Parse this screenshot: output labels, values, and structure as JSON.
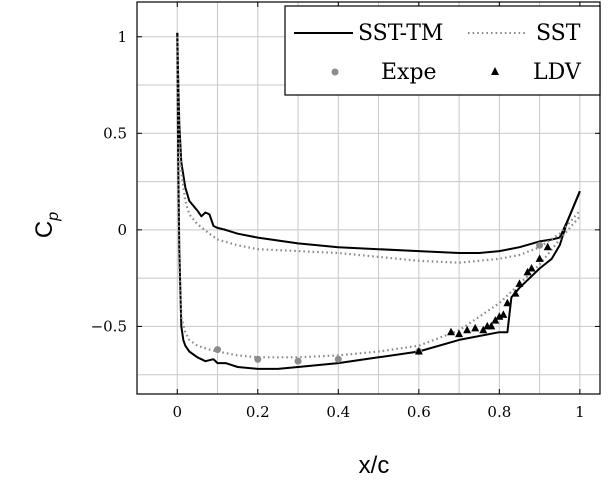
{
  "chart_data": {
    "type": "line",
    "title": "",
    "xlabel": "x/c",
    "ylabel": "C",
    "ylabel_sub": "p",
    "xlim": [
      -0.1,
      1.05
    ],
    "ylim": [
      -0.85,
      1.18
    ],
    "xticks": [
      0,
      0.2,
      0.4,
      0.6,
      0.8,
      1
    ],
    "xtick_labels": [
      "0",
      "0.2",
      "0.4",
      "0.6",
      "0.8",
      "1"
    ],
    "yticks": [
      -0.5,
      0,
      0.5,
      1
    ],
    "ytick_labels": [
      "−0.5",
      "0",
      "0.5",
      "1"
    ],
    "xgrid": [
      -0.1,
      0,
      0.1,
      0.2,
      0.3,
      0.4,
      0.5,
      0.6,
      0.7,
      0.8,
      0.9,
      1,
      1.05
    ],
    "ygrid": [
      -0.75,
      -0.5,
      -0.25,
      0,
      0.25,
      0.5,
      0.75,
      1
    ],
    "grid": true,
    "legend_position": "top-right",
    "series": [
      {
        "name": "SST-TM",
        "style": "solid",
        "color": "#000000",
        "lower": {
          "x": [
            0,
            0.002,
            0.005,
            0.01,
            0.015,
            0.02,
            0.03,
            0.05,
            0.07,
            0.09,
            0.1,
            0.12,
            0.15,
            0.2,
            0.25,
            0.3,
            0.4,
            0.5,
            0.6,
            0.7,
            0.8,
            0.82,
            0.83,
            0.85,
            0.9,
            0.93,
            0.95,
            0.97,
            1.0
          ],
          "y": [
            1.02,
            0.4,
            -0.1,
            -0.5,
            -0.57,
            -0.6,
            -0.63,
            -0.66,
            -0.68,
            -0.67,
            -0.69,
            -0.69,
            -0.71,
            -0.72,
            -0.72,
            -0.71,
            -0.69,
            -0.66,
            -0.63,
            -0.57,
            -0.53,
            -0.53,
            -0.35,
            -0.3,
            -0.2,
            -0.15,
            -0.08,
            0.05,
            0.2
          ]
        },
        "upper": {
          "x": [
            0,
            0.002,
            0.005,
            0.01,
            0.02,
            0.03,
            0.05,
            0.06,
            0.07,
            0.08,
            0.09,
            0.1,
            0.12,
            0.15,
            0.2,
            0.3,
            0.4,
            0.5,
            0.6,
            0.7,
            0.75,
            0.8,
            0.85,
            0.9,
            0.93,
            0.95,
            0.97,
            1.0
          ],
          "y": [
            1.02,
            0.8,
            0.55,
            0.35,
            0.22,
            0.15,
            0.1,
            0.07,
            0.09,
            0.08,
            0.02,
            0.01,
            0.0,
            -0.02,
            -0.04,
            -0.07,
            -0.09,
            -0.1,
            -0.11,
            -0.12,
            -0.12,
            -0.11,
            -0.09,
            -0.06,
            -0.05,
            -0.04,
            0.05,
            0.2
          ]
        }
      },
      {
        "name": "SST",
        "style": "dotted",
        "color": "#8c8c8c",
        "lower": {
          "x": [
            0,
            0.002,
            0.005,
            0.01,
            0.02,
            0.03,
            0.05,
            0.08,
            0.1,
            0.15,
            0.2,
            0.3,
            0.4,
            0.5,
            0.6,
            0.7,
            0.75,
            0.8,
            0.85,
            0.9,
            0.95,
            1.0
          ],
          "y": [
            1.0,
            0.3,
            -0.2,
            -0.45,
            -0.53,
            -0.57,
            -0.6,
            -0.62,
            -0.63,
            -0.65,
            -0.66,
            -0.66,
            -0.65,
            -0.63,
            -0.6,
            -0.52,
            -0.45,
            -0.38,
            -0.28,
            -0.18,
            -0.05,
            0.07
          ]
        },
        "upper": {
          "x": [
            0,
            0.002,
            0.005,
            0.01,
            0.02,
            0.03,
            0.05,
            0.08,
            0.1,
            0.15,
            0.2,
            0.3,
            0.4,
            0.5,
            0.6,
            0.7,
            0.8,
            0.85,
            0.9,
            0.95,
            1.0
          ],
          "y": [
            1.0,
            0.8,
            0.5,
            0.3,
            0.15,
            0.08,
            0.03,
            -0.02,
            -0.05,
            -0.08,
            -0.1,
            -0.11,
            -0.12,
            -0.14,
            -0.16,
            -0.17,
            -0.15,
            -0.13,
            -0.09,
            -0.02,
            0.1
          ]
        }
      },
      {
        "name": "Expe",
        "style": "marker-circle",
        "color": "#8c8c8c",
        "points": {
          "x": [
            0.1,
            0.2,
            0.3,
            0.4,
            0.6,
            0.9
          ],
          "y": [
            -0.62,
            -0.67,
            -0.68,
            -0.67,
            -0.63,
            -0.08
          ]
        }
      },
      {
        "name": "LDV",
        "style": "marker-triangle",
        "color": "#000000",
        "points": {
          "x": [
            0.6,
            0.68,
            0.7,
            0.72,
            0.74,
            0.76,
            0.77,
            0.78,
            0.79,
            0.8,
            0.81,
            0.82,
            0.84,
            0.85,
            0.87,
            0.88,
            0.9,
            0.92
          ],
          "y": [
            -0.63,
            -0.53,
            -0.54,
            -0.52,
            -0.51,
            -0.52,
            -0.5,
            -0.5,
            -0.47,
            -0.45,
            -0.44,
            -0.38,
            -0.33,
            -0.28,
            -0.22,
            -0.2,
            -0.15,
            -0.09
          ]
        }
      }
    ]
  }
}
